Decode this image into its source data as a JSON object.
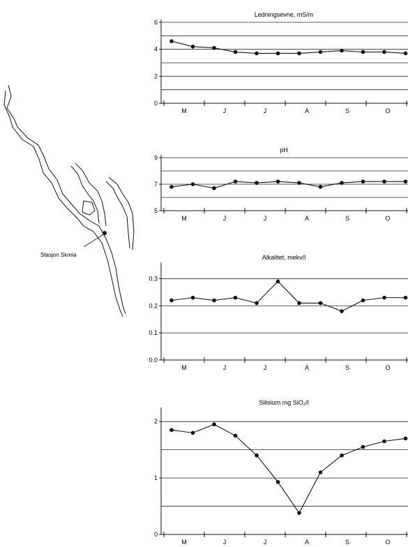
{
  "map": {
    "station_label": "Stasjon Skreia"
  },
  "month_labels": [
    "M",
    "J",
    "J",
    "A",
    "S",
    "O"
  ],
  "chart_data": [
    {
      "type": "line",
      "title": "Ledningsevne, mS/m",
      "ylim": [
        0,
        6
      ],
      "yticks": [
        "0",
        "2",
        "4",
        "6"
      ],
      "gridlines": [
        1,
        2,
        3,
        4,
        5,
        6
      ],
      "x": [
        1,
        2,
        3,
        4,
        5,
        6,
        7,
        8,
        9,
        10,
        11,
        12
      ],
      "values": [
        4.6,
        4.2,
        4.1,
        3.8,
        3.7,
        3.7,
        3.7,
        3.8,
        3.9,
        3.8,
        3.8,
        3.7
      ],
      "grid": true
    },
    {
      "type": "line",
      "title": "pH",
      "ylim": [
        5,
        9
      ],
      "yticks": [
        "5",
        "7",
        "9"
      ],
      "gridlines": [
        5,
        6,
        7,
        8,
        9
      ],
      "x": [
        1,
        2,
        3,
        4,
        5,
        6,
        7,
        8,
        9,
        10,
        11,
        12
      ],
      "values": [
        6.8,
        7.0,
        6.7,
        7.2,
        7.1,
        7.2,
        7.1,
        6.8,
        7.1,
        7.2,
        7.2,
        7.2
      ],
      "grid": true
    },
    {
      "type": "line",
      "title": "Alkalitet, mekv/l",
      "ylim": [
        0,
        0.35
      ],
      "yticks": [
        "0.0",
        "0.1",
        "0.2",
        "0.3"
      ],
      "gridlines": [
        0.1,
        0.2,
        0.3
      ],
      "x": [
        1,
        2,
        3,
        4,
        5,
        6,
        7,
        8,
        9,
        10,
        11,
        12
      ],
      "values": [
        0.22,
        0.23,
        0.22,
        0.23,
        0.21,
        0.29,
        0.21,
        0.21,
        0.18,
        0.22,
        0.23,
        0.23
      ],
      "grid": true
    },
    {
      "type": "line",
      "title": "Silisium mg SiO₂/l",
      "ylim": [
        0,
        2.2
      ],
      "yticks": [
        "0",
        "1",
        "2"
      ],
      "gridlines": [
        0.5,
        1,
        1.5,
        2
      ],
      "x": [
        1,
        2,
        3,
        4,
        5,
        6,
        7,
        8,
        9,
        10,
        11,
        12
      ],
      "values": [
        1.85,
        1.8,
        1.95,
        1.75,
        1.4,
        0.93,
        0.38,
        1.1,
        1.4,
        1.55,
        1.65,
        1.7
      ],
      "grid": true
    }
  ]
}
